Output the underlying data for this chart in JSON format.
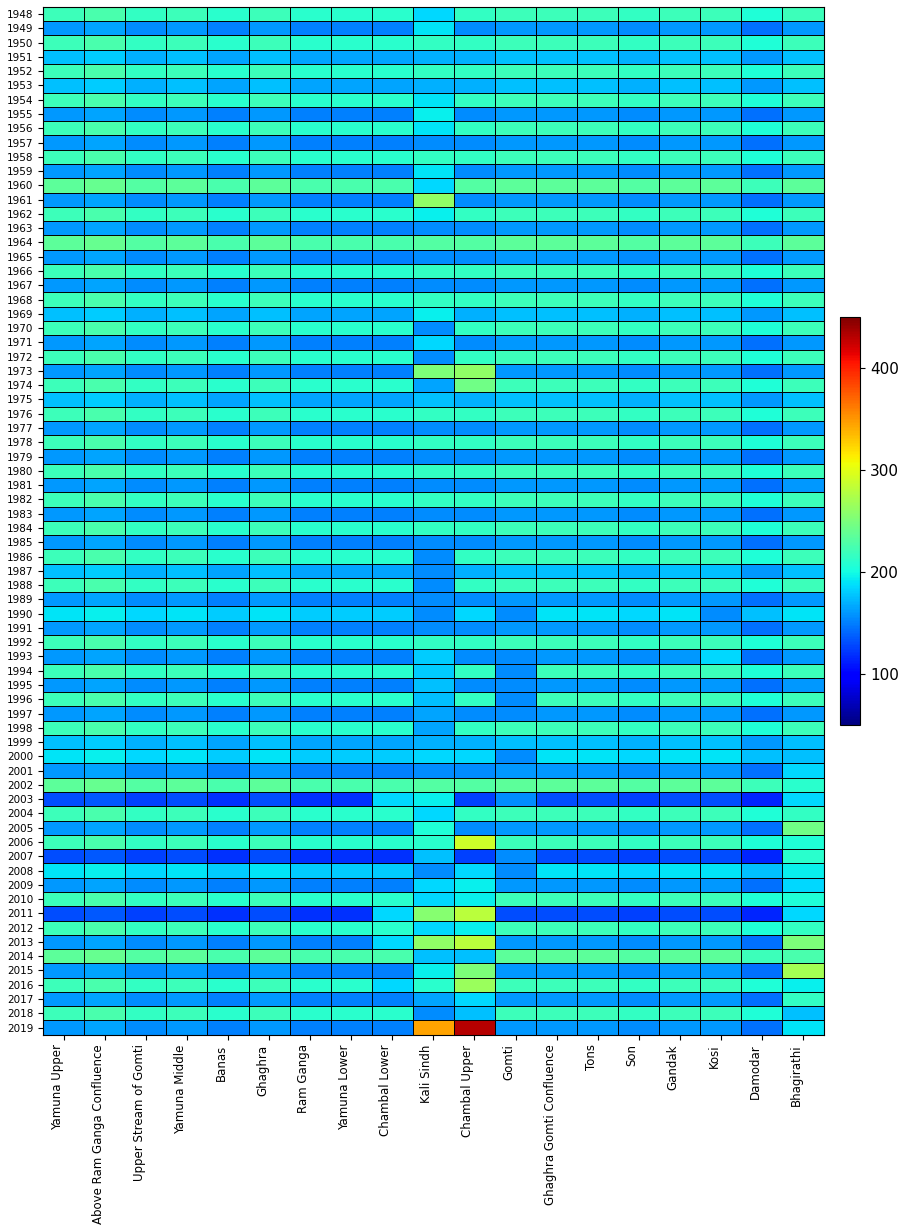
{
  "years": [
    1948,
    1949,
    1950,
    1951,
    1952,
    1953,
    1954,
    1955,
    1956,
    1957,
    1958,
    1959,
    1960,
    1961,
    1962,
    1963,
    1964,
    1965,
    1966,
    1967,
    1968,
    1969,
    1970,
    1971,
    1972,
    1973,
    1974,
    1975,
    1976,
    1977,
    1978,
    1979,
    1980,
    1981,
    1982,
    1983,
    1984,
    1985,
    1986,
    1987,
    1988,
    1989,
    1990,
    1991,
    1992,
    1993,
    1994,
    1995,
    1996,
    1997,
    1998,
    1999,
    2000,
    2001,
    2002,
    2003,
    2004,
    2005,
    2006,
    2007,
    2008,
    2009,
    2010,
    2011,
    2012,
    2013,
    2014,
    2015,
    2016,
    2017,
    2018,
    2019
  ],
  "sub_basins": [
    "Yamuna Upper",
    "Above Ram Ganga Confluence",
    "Upper Stream of Gomti",
    "Yamuna Middle",
    "Banas",
    "Ghaghra",
    "Ram Ganga",
    "Yamuna Lower",
    "Chambal Lower",
    "Kali Sindh",
    "Chambal Upper",
    "Gomti",
    "Ghaghra Gomti Confluence",
    "Tons",
    "Son",
    "Gandak",
    "Kosi",
    "Damodar",
    "Bhagirathi"
  ],
  "colormap": "jet",
  "vmin": 50,
  "vmax": 450,
  "colorbar_ticks": [
    100,
    200,
    300,
    400
  ],
  "purple_high": 215,
  "purple_low": 155,
  "blue_base": 155,
  "magenta_base": 210
}
